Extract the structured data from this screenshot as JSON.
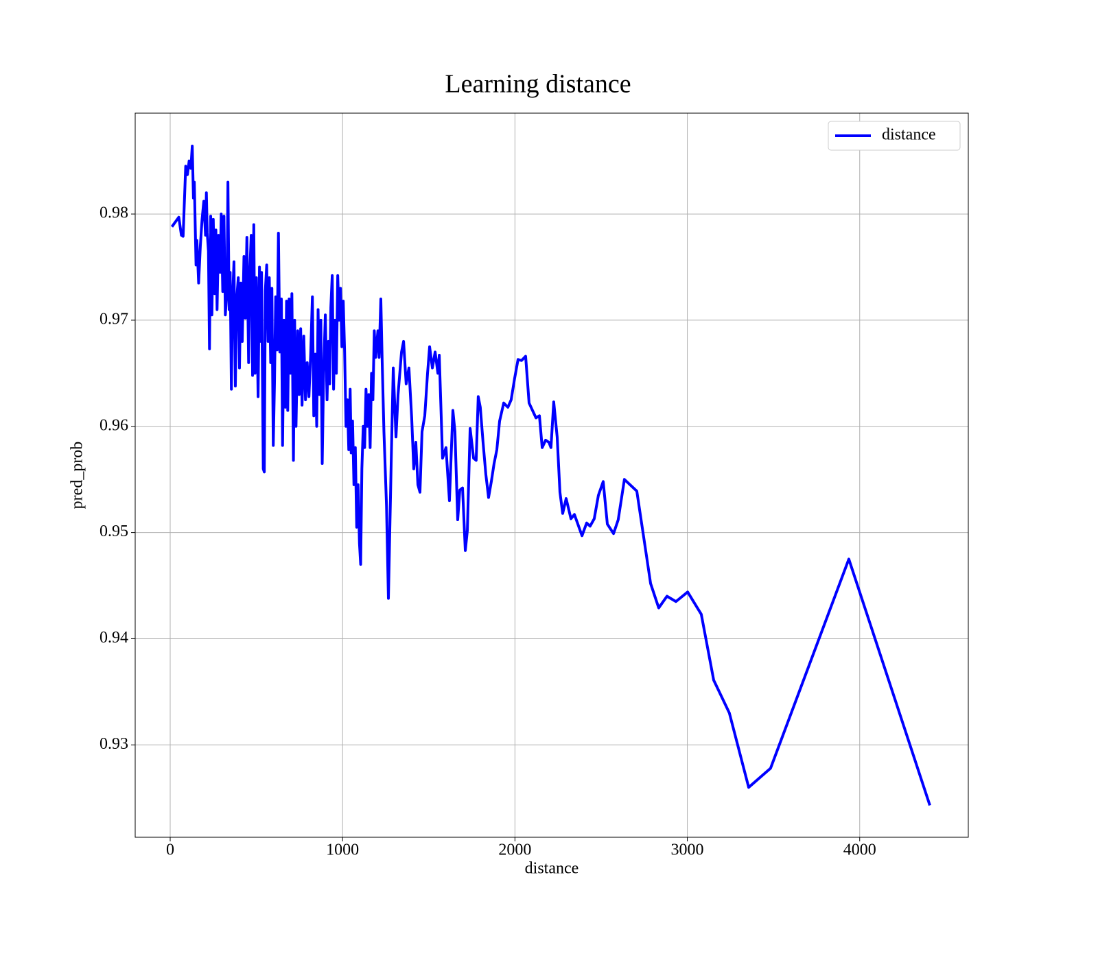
{
  "chart_data": {
    "type": "line",
    "title": "Learning distance",
    "xlabel": "distance",
    "ylabel": "pred_prob",
    "x": [
      10,
      50,
      65,
      75,
      90,
      100,
      110,
      120,
      128,
      135,
      140,
      150,
      155,
      165,
      175,
      185,
      195,
      205,
      210,
      215,
      222,
      228,
      235,
      242,
      250,
      258,
      265,
      272,
      280,
      290,
      296,
      305,
      312,
      320,
      330,
      335,
      342,
      348,
      355,
      362,
      370,
      378,
      386,
      395,
      402,
      410,
      418,
      428,
      436,
      445,
      455,
      462,
      470,
      478,
      485,
      492,
      500,
      510,
      518,
      525,
      530,
      540,
      546,
      552,
      560,
      568,
      575,
      583,
      590,
      598,
      605,
      612,
      620,
      628,
      636,
      645,
      652,
      660,
      668,
      675,
      682,
      690,
      698,
      706,
      715,
      722,
      730,
      740,
      748,
      757,
      765,
      775,
      785,
      795,
      805,
      815,
      825,
      833,
      842,
      850,
      858,
      866,
      874,
      882,
      890,
      900,
      910,
      918,
      925,
      932,
      940,
      948,
      956,
      964,
      972,
      980,
      988,
      996,
      1004,
      1012,
      1020,
      1028,
      1036,
      1044,
      1050,
      1058,
      1066,
      1074,
      1082,
      1090,
      1098,
      1105,
      1112,
      1120,
      1128,
      1136,
      1144,
      1152,
      1160,
      1168,
      1176,
      1184,
      1192,
      1205,
      1212,
      1222,
      1230,
      1240,
      1255,
      1266,
      1282,
      1294,
      1310,
      1322,
      1342,
      1354,
      1369,
      1385,
      1401,
      1413,
      1425,
      1437,
      1449,
      1461,
      1477,
      1493,
      1505,
      1521,
      1537,
      1553,
      1561,
      1580,
      1600,
      1620,
      1640,
      1652,
      1668,
      1680,
      1696,
      1712,
      1724,
      1740,
      1760,
      1775,
      1787,
      1799,
      1815,
      1831,
      1847,
      1863,
      1879,
      1895,
      1911,
      1935,
      1959,
      1978,
      1998,
      2018,
      2038,
      2062,
      2082,
      2102,
      2122,
      2142,
      2158,
      2178,
      2197,
      2209,
      2225,
      2245,
      2261,
      2277,
      2297,
      2325,
      2345,
      2389,
      2416,
      2436,
      2460,
      2484,
      2512,
      2536,
      2572,
      2599,
      2635,
      2707,
      2787,
      2834,
      2882,
      2934,
      3002,
      3081,
      3153,
      3244,
      3356,
      3483,
      3937,
      4407
    ],
    "series": [
      {
        "name": "distance",
        "color": "#0000ff",
        "values": [
          0.9788,
          0.9797,
          0.978,
          0.9779,
          0.9845,
          0.9837,
          0.985,
          0.9843,
          0.9864,
          0.9815,
          0.983,
          0.9752,
          0.9775,
          0.9735,
          0.977,
          0.9795,
          0.9812,
          0.978,
          0.982,
          0.9782,
          0.9765,
          0.9673,
          0.9798,
          0.9705,
          0.9795,
          0.9725,
          0.9785,
          0.971,
          0.978,
          0.9745,
          0.98,
          0.9727,
          0.9798,
          0.9705,
          0.973,
          0.983,
          0.971,
          0.9745,
          0.9635,
          0.972,
          0.9755,
          0.9638,
          0.972,
          0.974,
          0.9655,
          0.9735,
          0.968,
          0.976,
          0.9702,
          0.9778,
          0.966,
          0.9745,
          0.978,
          0.9648,
          0.979,
          0.965,
          0.974,
          0.9628,
          0.975,
          0.968,
          0.9745,
          0.956,
          0.9557,
          0.9728,
          0.9752,
          0.968,
          0.974,
          0.966,
          0.973,
          0.9582,
          0.964,
          0.9722,
          0.9672,
          0.9782,
          0.967,
          0.972,
          0.9582,
          0.97,
          0.9618,
          0.9718,
          0.9615,
          0.972,
          0.965,
          0.9725,
          0.9568,
          0.97,
          0.96,
          0.969,
          0.963,
          0.9692,
          0.962,
          0.9685,
          0.9625,
          0.966,
          0.9628,
          0.9668,
          0.9722,
          0.961,
          0.9668,
          0.96,
          0.971,
          0.963,
          0.97,
          0.9565,
          0.965,
          0.9705,
          0.9625,
          0.968,
          0.964,
          0.9712,
          0.9742,
          0.9635,
          0.97,
          0.965,
          0.9742,
          0.97,
          0.973,
          0.9675,
          0.9718,
          0.967,
          0.96,
          0.9625,
          0.9578,
          0.9635,
          0.9575,
          0.9605,
          0.9545,
          0.958,
          0.9505,
          0.9545,
          0.949,
          0.947,
          0.956,
          0.96,
          0.958,
          0.9635,
          0.96,
          0.963,
          0.958,
          0.965,
          0.9625,
          0.969,
          0.9665,
          0.969,
          0.9665,
          0.972,
          0.966,
          0.9595,
          0.9525,
          0.9438,
          0.9565,
          0.9655,
          0.959,
          0.963,
          0.967,
          0.968,
          0.964,
          0.9655,
          0.9608,
          0.956,
          0.9585,
          0.9545,
          0.9538,
          0.9595,
          0.961,
          0.965,
          0.9675,
          0.9655,
          0.967,
          0.965,
          0.9667,
          0.957,
          0.958,
          0.953,
          0.9615,
          0.9595,
          0.9512,
          0.954,
          0.9542,
          0.9483,
          0.9502,
          0.9598,
          0.957,
          0.9568,
          0.9628,
          0.9618,
          0.9585,
          0.9555,
          0.9533,
          0.9548,
          0.9565,
          0.9578,
          0.9605,
          0.9622,
          0.9618,
          0.9625,
          0.9645,
          0.9663,
          0.9662,
          0.9666,
          0.9622,
          0.9615,
          0.9608,
          0.961,
          0.958,
          0.9587,
          0.9585,
          0.958,
          0.9623,
          0.959,
          0.9538,
          0.9518,
          0.9532,
          0.9513,
          0.9517,
          0.9497,
          0.9509,
          0.9506,
          0.9513,
          0.9535,
          0.9548,
          0.9508,
          0.9499,
          0.9512,
          0.955,
          0.9539,
          0.9452,
          0.9429,
          0.944,
          0.9435,
          0.9444,
          0.9423,
          0.9361,
          0.933,
          0.926,
          0.9278,
          0.9475,
          0.9243
        ]
      }
    ],
    "xlim": [
      -203,
      4630
    ],
    "ylim": [
      0.9213,
      0.9895
    ],
    "xticks": [
      0,
      1000,
      2000,
      3000,
      4000
    ],
    "yticks": [
      0.93,
      0.94,
      0.95,
      0.96,
      0.97,
      0.98
    ],
    "grid": true,
    "legend": "upper-right"
  }
}
